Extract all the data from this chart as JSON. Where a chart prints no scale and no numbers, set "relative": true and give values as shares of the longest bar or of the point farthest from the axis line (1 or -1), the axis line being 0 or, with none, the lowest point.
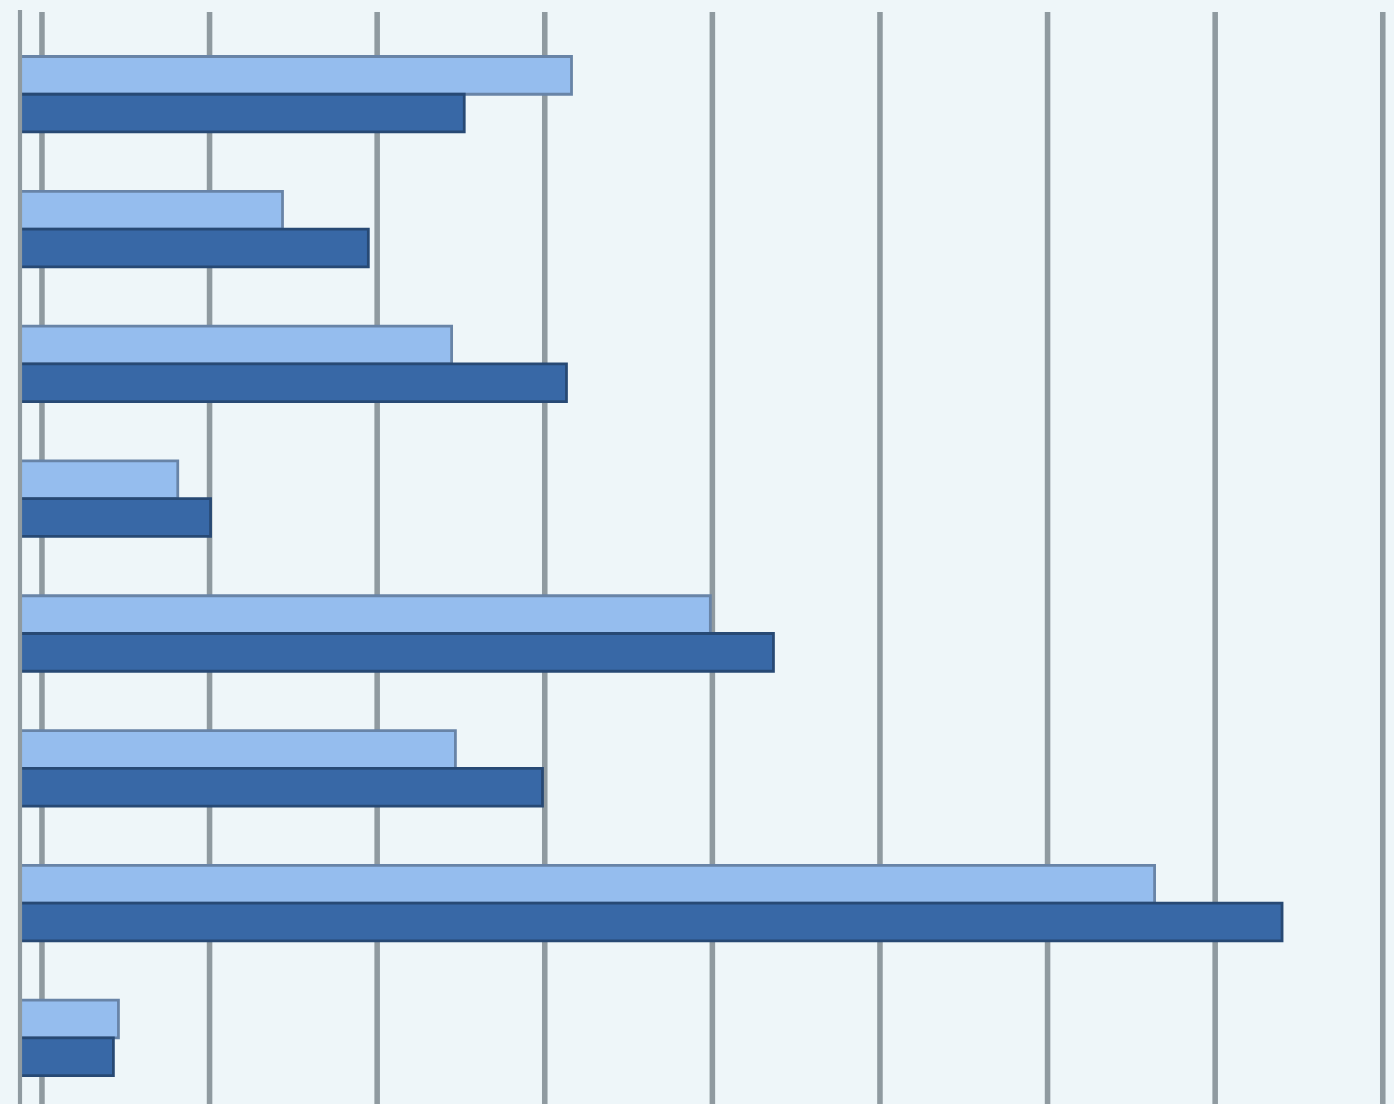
{
  "chart_data": {
    "type": "bar",
    "orientation": "horizontal",
    "relative": true,
    "grid": "x",
    "categories": [
      null,
      null,
      null,
      null,
      null,
      null,
      null,
      null
    ],
    "series": [
      {
        "color": "#95bdee",
        "values": [
          0.437,
          0.208,
          0.342,
          0.125,
          0.547,
          0.345,
          0.899,
          0.078
        ]
      },
      {
        "color": "#3868a6",
        "values": [
          0.352,
          0.276,
          0.433,
          0.151,
          0.597,
          0.414,
          1.0,
          0.074
        ]
      }
    ]
  }
}
